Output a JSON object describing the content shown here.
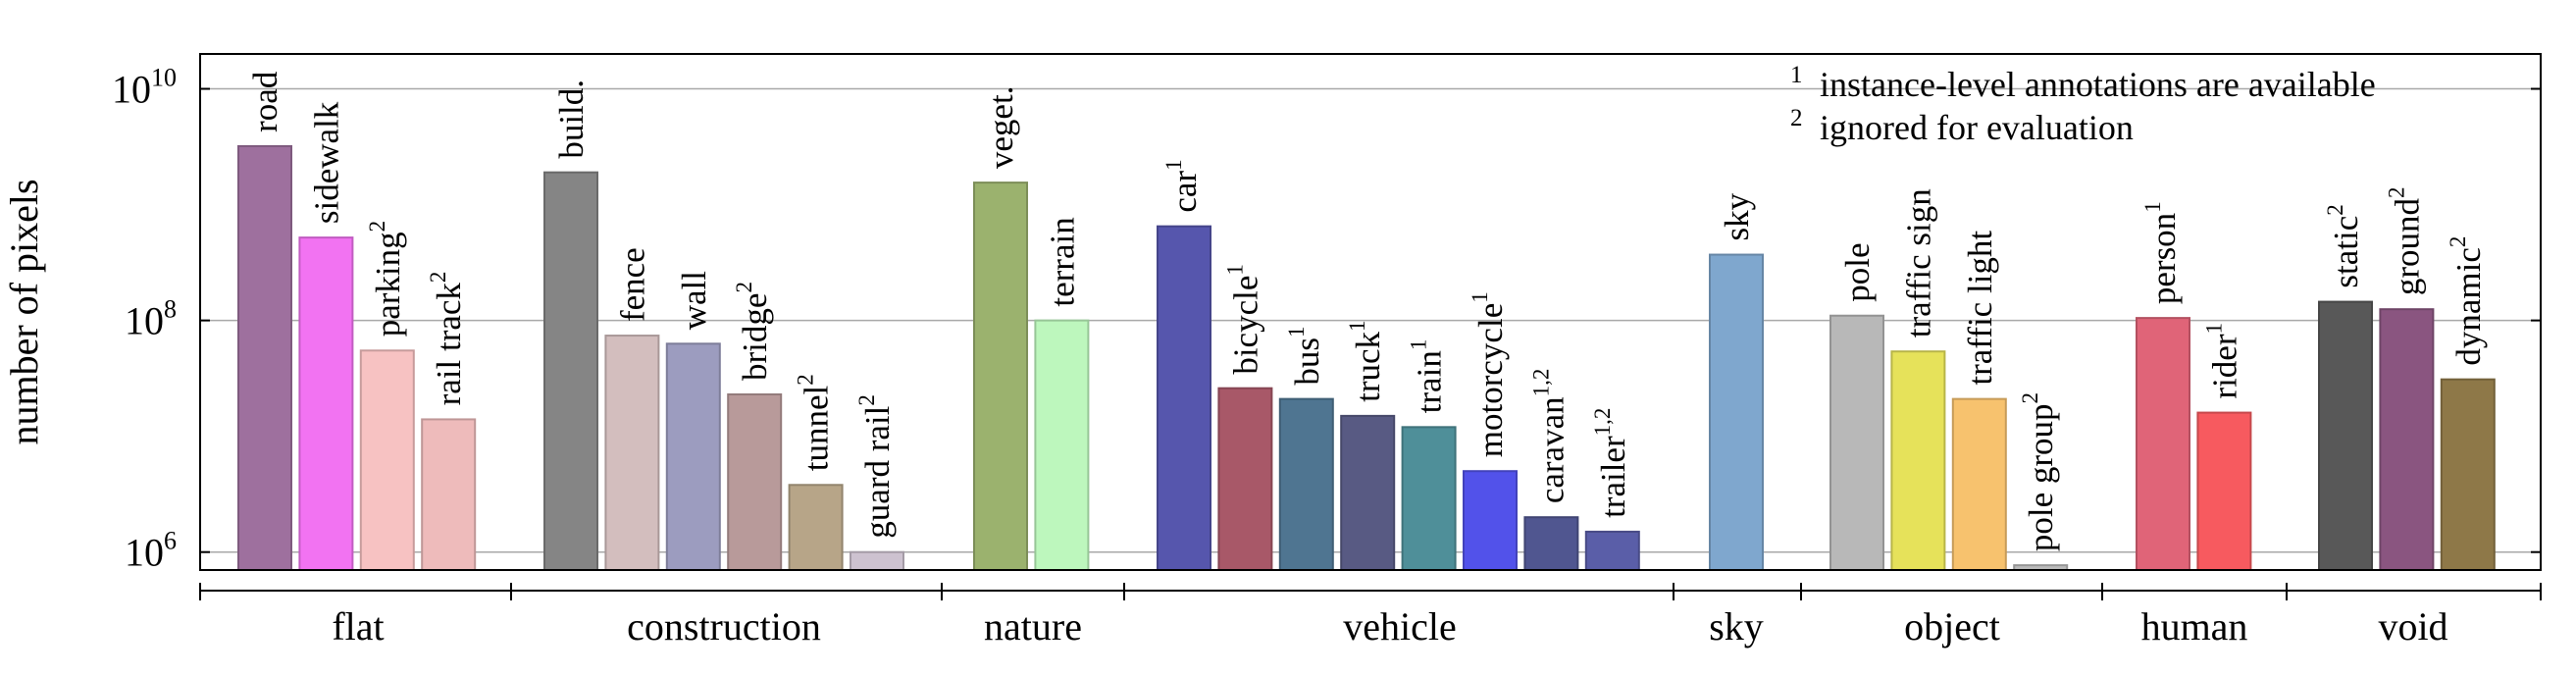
{
  "chart_data": {
    "type": "bar",
    "y_scale": "log",
    "ylabel": "number of pixels",
    "xlabel": "",
    "ylim": [
      700000,
      20000000000
    ],
    "y_ticks": [
      {
        "value": 1000000,
        "base": "10",
        "exp": "6"
      },
      {
        "value": 100000000,
        "base": "10",
        "exp": "8"
      },
      {
        "value": 10000000000,
        "base": "10",
        "exp": "10"
      }
    ],
    "grid": "horizontal at major ticks",
    "groups": [
      "flat",
      "construction",
      "nature",
      "vehicle",
      "sky",
      "object",
      "human",
      "void"
    ],
    "bars": [
      {
        "label": "road",
        "sup": "",
        "group": "flat",
        "value": 3200000000,
        "color": "#9e709e"
      },
      {
        "label": "sidewalk",
        "sup": "",
        "group": "flat",
        "value": 520000000,
        "color": "#f273f2"
      },
      {
        "label": "parking",
        "sup": "2",
        "group": "flat",
        "value": 55000000,
        "color": "#f7c2c2"
      },
      {
        "label": "rail track",
        "sup": "2",
        "group": "flat",
        "value": 14000000,
        "color": "#eebbbb"
      },
      {
        "label": "build.",
        "sup": "",
        "group": "construction",
        "value": 1900000000,
        "color": "#858585"
      },
      {
        "label": "fence",
        "sup": "",
        "group": "construction",
        "value": 74000000,
        "color": "#d3bebe"
      },
      {
        "label": "wall",
        "sup": "",
        "group": "construction",
        "value": 63000000,
        "color": "#9c9cbf"
      },
      {
        "label": "bridge",
        "sup": "2",
        "group": "construction",
        "value": 23000000,
        "color": "#b89a9a"
      },
      {
        "label": "tunnel",
        "sup": "2",
        "group": "construction",
        "value": 3800000,
        "color": "#b7a588"
      },
      {
        "label": "guard rail",
        "sup": "2",
        "group": "construction",
        "value": 1000000,
        "color": "#cdc2d0"
      },
      {
        "label": "veget.",
        "sup": "",
        "group": "nature",
        "value": 1550000000,
        "color": "#9bb26e"
      },
      {
        "label": "terrain",
        "sup": "",
        "group": "nature",
        "value": 100000000,
        "color": "#bdf7bd"
      },
      {
        "label": "car",
        "sup": "1",
        "group": "vehicle",
        "value": 650000000,
        "color": "#5656ad"
      },
      {
        "label": "bicycle",
        "sup": "1",
        "group": "vehicle",
        "value": 26000000,
        "color": "#a85868"
      },
      {
        "label": "bus",
        "sup": "1",
        "group": "vehicle",
        "value": 21000000,
        "color": "#4f7591"
      },
      {
        "label": "truck",
        "sup": "1",
        "group": "vehicle",
        "value": 15000000,
        "color": "#585a83"
      },
      {
        "label": "train",
        "sup": "1",
        "group": "vehicle",
        "value": 12000000,
        "color": "#4f8f99"
      },
      {
        "label": "motorcycle",
        "sup": "1",
        "group": "vehicle",
        "value": 5000000,
        "color": "#5252ea"
      },
      {
        "label": "caravan",
        "sup": "1,2",
        "group": "vehicle",
        "value": 2000000,
        "color": "#505690"
      },
      {
        "label": "trailer",
        "sup": "1,2",
        "group": "vehicle",
        "value": 1500000,
        "color": "#5a5ea8"
      },
      {
        "label": "sky",
        "sup": "",
        "group": "sky",
        "value": 370000000,
        "color": "#7fa7ce"
      },
      {
        "label": "pole",
        "sup": "",
        "group": "object",
        "value": 110000000,
        "color": "#b8b8b8"
      },
      {
        "label": "traffic sign",
        "sup": "",
        "group": "object",
        "value": 54000000,
        "color": "#e6e25a"
      },
      {
        "label": "traffic light",
        "sup": "",
        "group": "object",
        "value": 21000000,
        "color": "#f7c26e"
      },
      {
        "label": "pole group",
        "sup": "2",
        "group": "object",
        "value": 770000,
        "color": "#bbbbbb"
      },
      {
        "label": "person",
        "sup": "1",
        "group": "human",
        "value": 105000000,
        "color": "#e06478"
      },
      {
        "label": "rider",
        "sup": "1",
        "group": "human",
        "value": 16000000,
        "color": "#f75a5f"
      },
      {
        "label": "static",
        "sup": "2",
        "group": "void",
        "value": 145000000,
        "color": "#585858"
      },
      {
        "label": "ground",
        "sup": "2",
        "group": "void",
        "value": 125000000,
        "color": "#8a5580"
      },
      {
        "label": "dynamic",
        "sup": "2",
        "group": "void",
        "value": 31000000,
        "color": "#8e7848"
      }
    ],
    "annotations": [
      {
        "sup": "1",
        "text": "instance-level annotations are available"
      },
      {
        "sup": "2",
        "text": "ignored for evaluation"
      }
    ]
  }
}
